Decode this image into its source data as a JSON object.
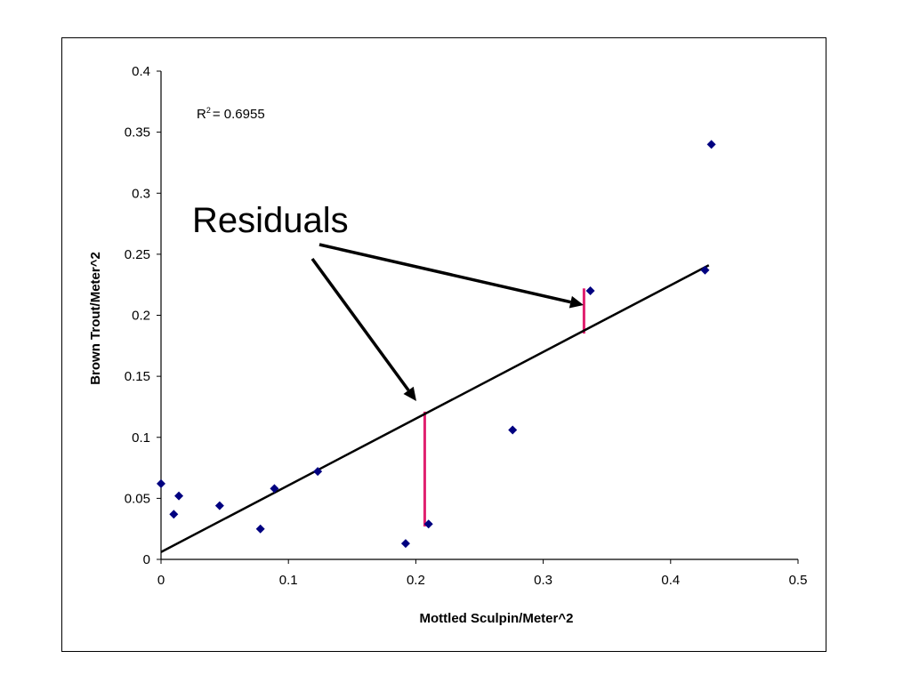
{
  "chart_data": {
    "type": "scatter",
    "title": "",
    "xlabel": "Mottled Sculpin/Meter^2",
    "ylabel": "Brown Trout/Meter^2",
    "xlim": [
      0,
      0.5
    ],
    "ylim": [
      0,
      0.4
    ],
    "x_ticks": [
      "0",
      "0.1",
      "0.2",
      "0.3",
      "0.4",
      "0.5"
    ],
    "y_ticks": [
      "0",
      "0.05",
      "0.1",
      "0.15",
      "0.2",
      "0.25",
      "0.3",
      "0.35",
      "0.4"
    ],
    "grid": false,
    "legend": "none",
    "marker_color": "#000080",
    "points": [
      {
        "x": 0.0,
        "y": 0.062
      },
      {
        "x": 0.01,
        "y": 0.037
      },
      {
        "x": 0.014,
        "y": 0.052
      },
      {
        "x": 0.046,
        "y": 0.044
      },
      {
        "x": 0.078,
        "y": 0.025
      },
      {
        "x": 0.089,
        "y": 0.058
      },
      {
        "x": 0.123,
        "y": 0.072
      },
      {
        "x": 0.192,
        "y": 0.013
      },
      {
        "x": 0.21,
        "y": 0.029
      },
      {
        "x": 0.276,
        "y": 0.106
      },
      {
        "x": 0.337,
        "y": 0.22
      },
      {
        "x": 0.427,
        "y": 0.237
      },
      {
        "x": 0.432,
        "y": 0.34
      }
    ],
    "trendline": {
      "x": [
        0.0,
        0.43
      ],
      "y": [
        0.006,
        0.241
      ],
      "color": "#000000"
    },
    "r_squared_label": "= 0.6955",
    "r_squared_prefix": "R",
    "r_squared_sup": "2",
    "annotations": {
      "callout_text": "Residuals",
      "residual_color": "#e0206f",
      "residuals": [
        {
          "x": 0.207,
          "y_from": 0.121,
          "y_to": 0.027
        },
        {
          "x": 0.332,
          "y_from": 0.222,
          "y_to": 0.185
        }
      ]
    }
  }
}
